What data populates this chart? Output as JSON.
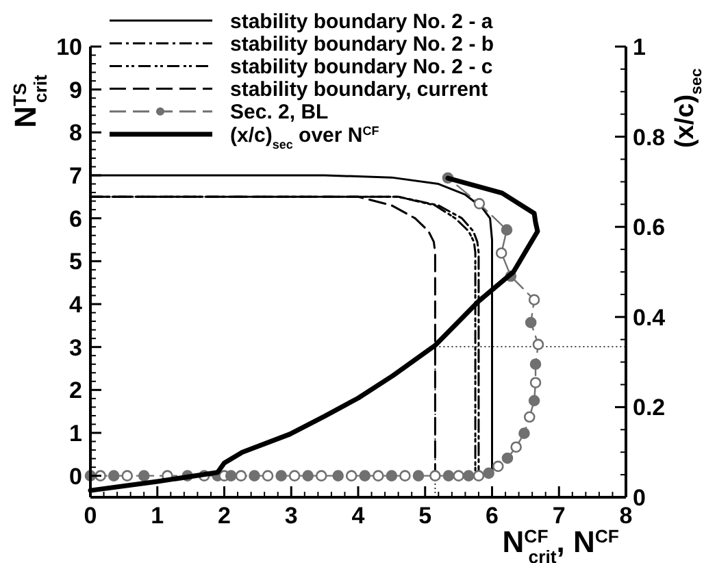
{
  "chart_data": {
    "type": "line",
    "xlabel": "N$^{CF}$$_{crit}$, N$^{CF}$",
    "ylabel": "N$^{TS}$$_{crit}$",
    "y2label": "(x/c)$_{sec}$",
    "xlim": [
      0,
      8
    ],
    "xticks": [
      0,
      1,
      2,
      3,
      4,
      5,
      6,
      7,
      8
    ],
    "ylim": [
      -0.5,
      10
    ],
    "yticks": [
      0,
      1,
      2,
      3,
      4,
      5,
      6,
      7,
      8,
      9,
      10
    ],
    "y2lim": [
      0,
      1
    ],
    "y2ticks": [
      0,
      0.2,
      0.4,
      0.6,
      0.8,
      1
    ],
    "legend": "top left",
    "grid": false,
    "series": [
      {
        "name": "stability boundary No. 2 - a",
        "color": "#000000",
        "line_style": "solid",
        "marker": "none",
        "x": [
          0,
          3.5,
          4.5,
          5.2,
          5.6,
          5.85,
          5.97,
          6.0,
          6.0
        ],
        "values": [
          7,
          7,
          6.95,
          6.8,
          6.55,
          6.25,
          6,
          5.5,
          0
        ]
      },
      {
        "name": "stability boundary No. 2 - b",
        "color": "#000000",
        "line_style": "dashdot",
        "marker": "none",
        "x": [
          0,
          4.6,
          5.2,
          5.55,
          5.72,
          5.78,
          5.8,
          5.8
        ],
        "values": [
          6.5,
          6.5,
          6.3,
          6,
          5.7,
          5.45,
          5.2,
          0
        ]
      },
      {
        "name": "stability boundary No. 2 - c",
        "color": "#000000",
        "line_style": "dashdotdot",
        "marker": "none",
        "x": [
          0,
          4.6,
          5.15,
          5.45,
          5.65,
          5.73,
          5.75,
          5.75
        ],
        "values": [
          6.5,
          6.5,
          6.3,
          6,
          5.7,
          5.45,
          5.2,
          0
        ]
      },
      {
        "name": "stability boundary, current",
        "color": "#000000",
        "line_style": "dashed",
        "marker": "none",
        "x": [
          0,
          4.0,
          4.5,
          4.85,
          5.05,
          5.13,
          5.15,
          5.15
        ],
        "values": [
          6.5,
          6.5,
          6.3,
          6,
          5.7,
          5.45,
          5.2,
          0
        ]
      },
      {
        "name": "Sec. 2, BL",
        "color": "#707070",
        "line_style": "dashed",
        "marker": "circle",
        "x": [
          0,
          0.15,
          0.35,
          0.55,
          0.8,
          1.15,
          1.45,
          1.7,
          1.9,
          2.0,
          2.1,
          2.25,
          2.45,
          2.65,
          2.85,
          3.05,
          3.25,
          3.45,
          3.7,
          3.9,
          4.1,
          4.3,
          4.5,
          4.7,
          4.9,
          5.15,
          5.35,
          5.5,
          5.65,
          5.8,
          5.95,
          6.09,
          6.23,
          6.36,
          6.48,
          6.56,
          6.63,
          6.65,
          6.65,
          6.69,
          6.58,
          6.63,
          6.28,
          6.14,
          6.22,
          5.81,
          5.34
        ],
        "values": [
          0,
          0,
          0,
          0,
          0,
          0,
          0,
          0,
          0,
          0,
          0,
          0,
          0,
          0,
          0,
          0,
          0,
          0,
          0,
          0,
          0,
          0,
          0,
          0,
          0,
          0,
          0,
          0,
          0,
          0,
          0.06,
          0.22,
          0.41,
          0.67,
          0.99,
          1.37,
          1.75,
          2.17,
          2.6,
          3.06,
          3.57,
          4.1,
          4.65,
          5.19,
          5.73,
          6.34,
          6.94
        ]
      },
      {
        "name": "(x/c)$_{sec}$ over N$^{CF}$",
        "color": "#000000",
        "line_style": "solid",
        "marker": "none",
        "axis": "y2",
        "x": [
          0,
          1,
          1.9,
          2.0,
          2.27,
          2.98,
          3.5,
          4.0,
          4.52,
          5.15,
          5.8,
          6.32,
          6.68,
          6.65,
          6.63,
          6.15,
          5.34
        ],
        "values": [
          0.015,
          0.035,
          0.055,
          0.076,
          0.1,
          0.14,
          0.18,
          0.22,
          0.27,
          0.337,
          0.435,
          0.5,
          0.59,
          0.61,
          0.63,
          0.675,
          0.708
        ]
      }
    ],
    "ref_lines": [
      {
        "axis": "x",
        "value": 5.15,
        "line_style": "dotted",
        "color": "#000000"
      },
      {
        "axis": "y2",
        "value": 0.334,
        "line_style": "dotted",
        "color": "#000000"
      }
    ]
  }
}
